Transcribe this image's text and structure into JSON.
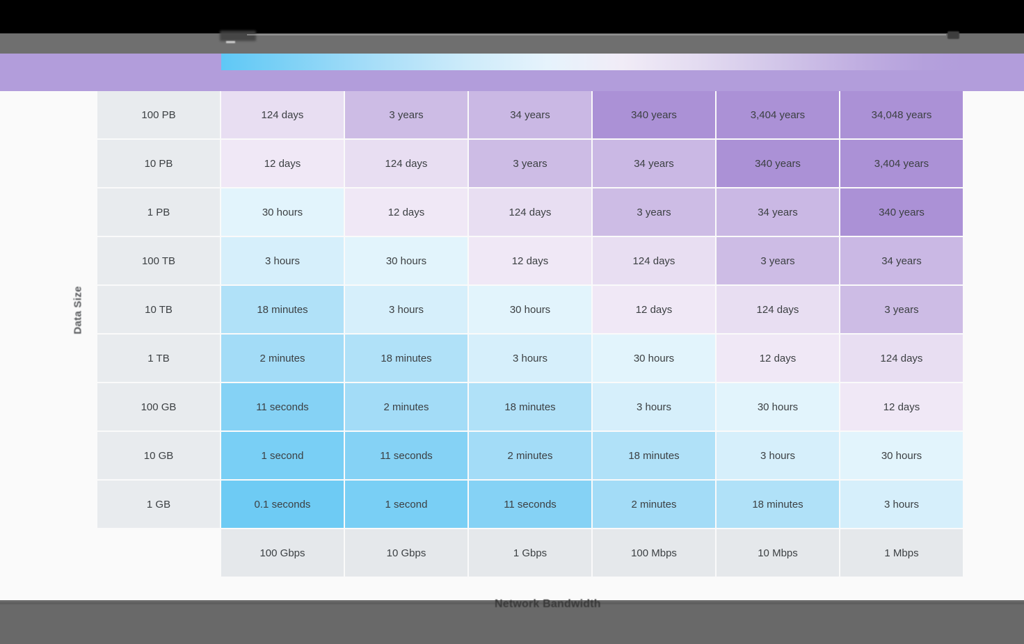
{
  "window": {
    "topbar_color": "#000000",
    "toolbar_color": "#6f6f6f",
    "banner_color": "#b29ddb",
    "content_bg": "#fafafa",
    "bottombar_color": "#696969"
  },
  "chart_data": {
    "type": "heatmap",
    "xlabel": "Network Bandwidth",
    "ylabel": "Data Size",
    "x_categories": [
      "100 Gbps",
      "10 Gbps",
      "1 Gbps",
      "100 Mbps",
      "10 Mbps",
      "1 Mbps"
    ],
    "y_categories": [
      "100 PB",
      "10 PB",
      "1 PB",
      "100 TB",
      "10 TB",
      "1 TB",
      "100 GB",
      "10 GB",
      "1 GB"
    ],
    "rows": [
      {
        "size": "100 PB",
        "values": [
          "124 days",
          "3 years",
          "34 years",
          "340 years",
          "3,404 years",
          "34,048 years"
        ]
      },
      {
        "size": "10 PB",
        "values": [
          "12 days",
          "124 days",
          "3 years",
          "34 years",
          "340 years",
          "3,404 years"
        ]
      },
      {
        "size": "1 PB",
        "values": [
          "30 hours",
          "12 days",
          "124 days",
          "3 years",
          "34 years",
          "340 years"
        ]
      },
      {
        "size": "100 TB",
        "values": [
          "3 hours",
          "30 hours",
          "12 days",
          "124 days",
          "3 years",
          "34 years"
        ]
      },
      {
        "size": "10 TB",
        "values": [
          "18 minutes",
          "3 hours",
          "30 hours",
          "12 days",
          "124 days",
          "3 years"
        ]
      },
      {
        "size": "1 TB",
        "values": [
          "2 minutes",
          "18 minutes",
          "3 hours",
          "30 hours",
          "12 days",
          "124 days"
        ]
      },
      {
        "size": "100 GB",
        "values": [
          "11 seconds",
          "2 minutes",
          "18 minutes",
          "3 hours",
          "30 hours",
          "12 days"
        ]
      },
      {
        "size": "10 GB",
        "values": [
          "1 second",
          "11 seconds",
          "2 minutes",
          "18 minutes",
          "3 hours",
          "30 hours"
        ]
      },
      {
        "size": "1 GB",
        "values": [
          "0.1 seconds",
          "1 second",
          "11 seconds",
          "2 minutes",
          "18 minutes",
          "3 hours"
        ]
      }
    ],
    "value_colors": {
      "0.1 seconds": "#6ecbf4",
      "1 second": "#79cff5",
      "11 seconds": "#85d2f5",
      "2 minutes": "#a3dcf7",
      "18 minutes": "#b0e1f8",
      "3 hours": "#d6effb",
      "30 hours": "#e2f4fc",
      "12 days": "#f0e8f6",
      "124 days": "#e8def2",
      "3 years": "#cdbce5",
      "34 years": "#cab8e4",
      "340 years": "#ab91d6",
      "3,404 years": "#ab91d6",
      "34,048 years": "#ab91d6"
    },
    "row_label_bg": "#e8ebee",
    "col_label_bg": "#e5e8eb",
    "cell_text_color": "#3c4043",
    "legend": {
      "type": "gradient",
      "position": "top-banner",
      "fast_color": "#5fc8f6",
      "slow_color": "#b29ddb"
    },
    "grid": "2px white gaps between cells",
    "axis_ranges": {
      "data_size": [
        "1 GB",
        "100 PB"
      ],
      "bandwidth": [
        "1 Mbps",
        "100 Gbps"
      ]
    }
  }
}
